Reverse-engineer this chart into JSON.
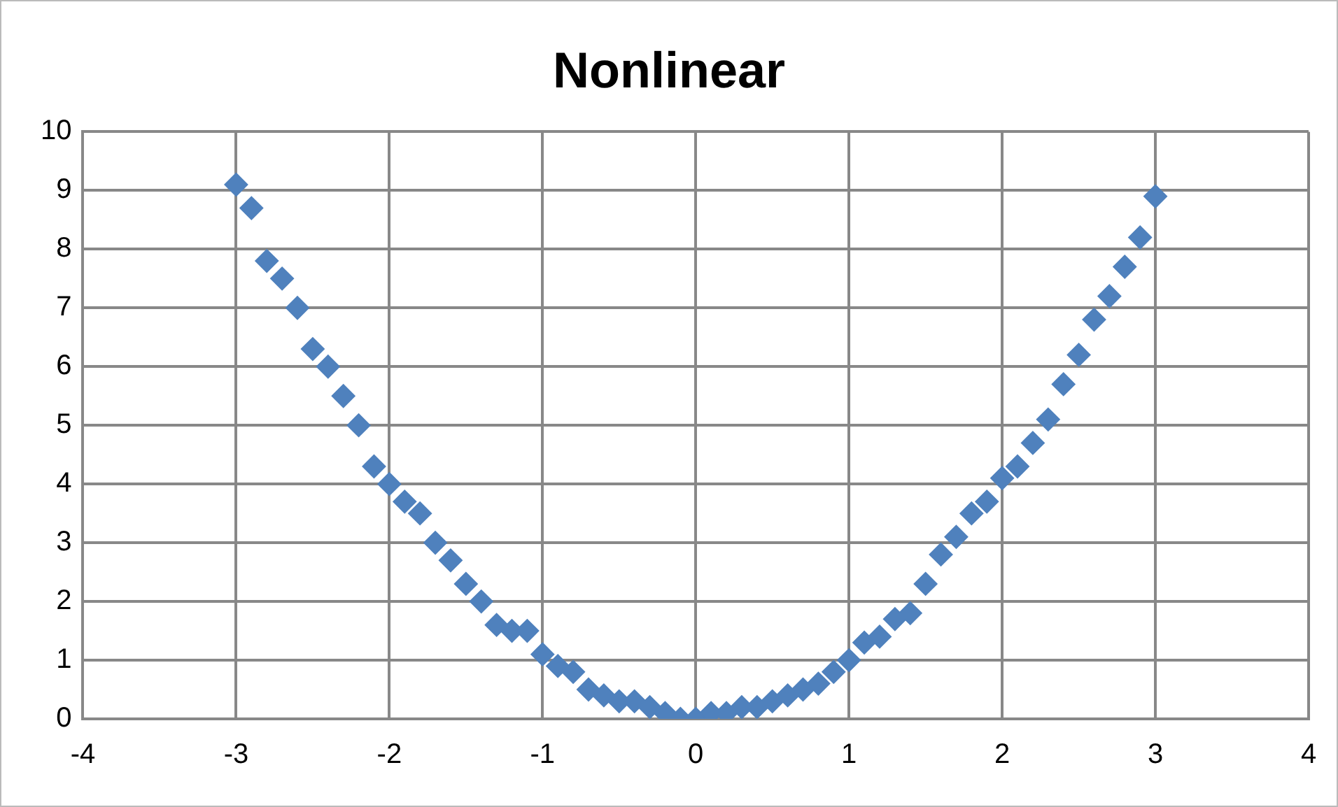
{
  "chart_data": {
    "type": "scatter",
    "title": "Nonlinear",
    "x": [
      -3,
      -2.9,
      -2.8,
      -2.7,
      -2.6,
      -2.5,
      -2.4,
      -2.3,
      -2.2,
      -2.1,
      -2,
      -1.9,
      -1.8,
      -1.7,
      -1.6,
      -1.5,
      -1.4,
      -1.3,
      -1.2,
      -1.1,
      -1,
      -0.9,
      -0.8,
      -0.7,
      -0.6,
      -0.5,
      -0.4,
      -0.3,
      -0.2,
      -0.1,
      0,
      0.1,
      0.2,
      0.3,
      0.4,
      0.5,
      0.6,
      0.7,
      0.8,
      0.9,
      1,
      1.1,
      1.2,
      1.3,
      1.4,
      1.5,
      1.6,
      1.7,
      1.8,
      1.9,
      2,
      2.1,
      2.2,
      2.3,
      2.4,
      2.5,
      2.6,
      2.7,
      2.8,
      2.9,
      3
    ],
    "series": [
      {
        "color": "#4f81bd",
        "values": [
          9.1,
          8.7,
          7.8,
          7.5,
          7.0,
          6.3,
          6.0,
          5.5,
          5.0,
          4.3,
          4.0,
          3.7,
          3.5,
          3.0,
          2.7,
          2.3,
          2.0,
          1.6,
          1.5,
          1.5,
          1.1,
          0.9,
          0.8,
          0.5,
          0.4,
          0.3,
          0.3,
          0.2,
          0.1,
          0.0,
          0.0,
          0.1,
          0.1,
          0.2,
          0.2,
          0.3,
          0.4,
          0.5,
          0.6,
          0.8,
          1.0,
          1.3,
          1.4,
          1.7,
          1.8,
          2.3,
          2.8,
          3.1,
          3.5,
          3.7,
          4.1,
          4.3,
          4.7,
          5.1,
          5.7,
          6.2,
          6.8,
          7.2,
          7.7,
          8.2,
          8.9
        ]
      }
    ],
    "xlim": [
      -4,
      4
    ],
    "xticks": [
      -4,
      -3,
      -2,
      -1,
      0,
      1,
      2,
      3,
      4
    ],
    "ylim": [
      0,
      10
    ],
    "yticks": [
      0,
      1,
      2,
      3,
      4,
      5,
      6,
      7,
      8,
      9,
      10
    ],
    "grid": true,
    "legend": false,
    "marker": "diamond"
  }
}
